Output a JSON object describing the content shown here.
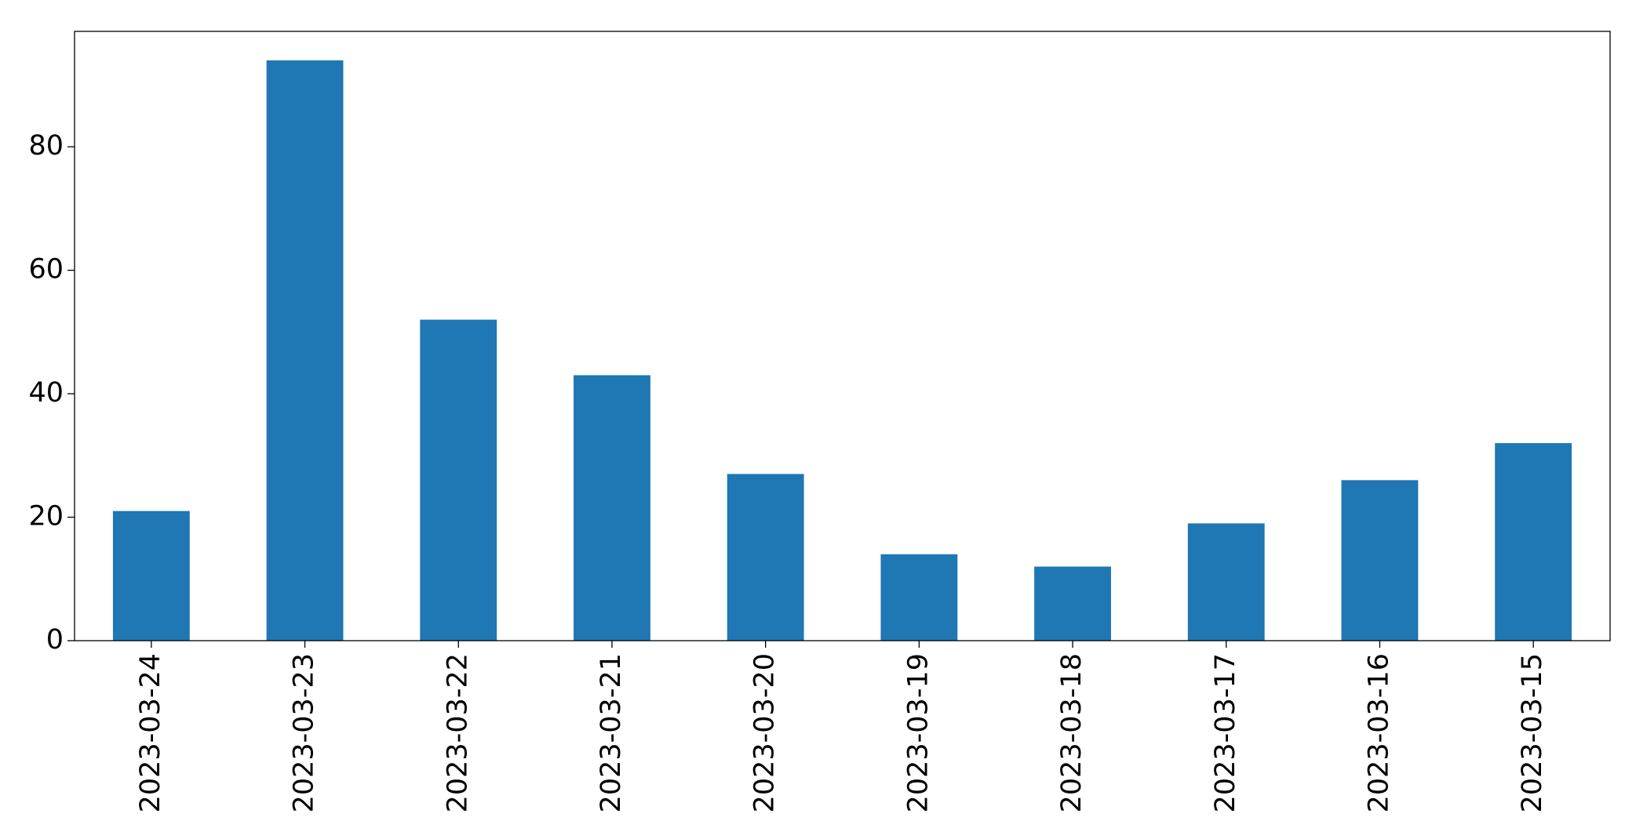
{
  "chart_data": {
    "type": "bar",
    "categories": [
      "2023-03-24",
      "2023-03-23",
      "2023-03-22",
      "2023-03-21",
      "2023-03-20",
      "2023-03-19",
      "2023-03-18",
      "2023-03-17",
      "2023-03-16",
      "2023-03-15"
    ],
    "values": [
      21,
      94,
      52,
      43,
      27,
      14,
      12,
      19,
      26,
      32
    ],
    "color": "#1f77b4",
    "ylim": [
      0,
      98.7
    ],
    "yticks": [
      0,
      20,
      40,
      60,
      80
    ],
    "grid": false
  }
}
